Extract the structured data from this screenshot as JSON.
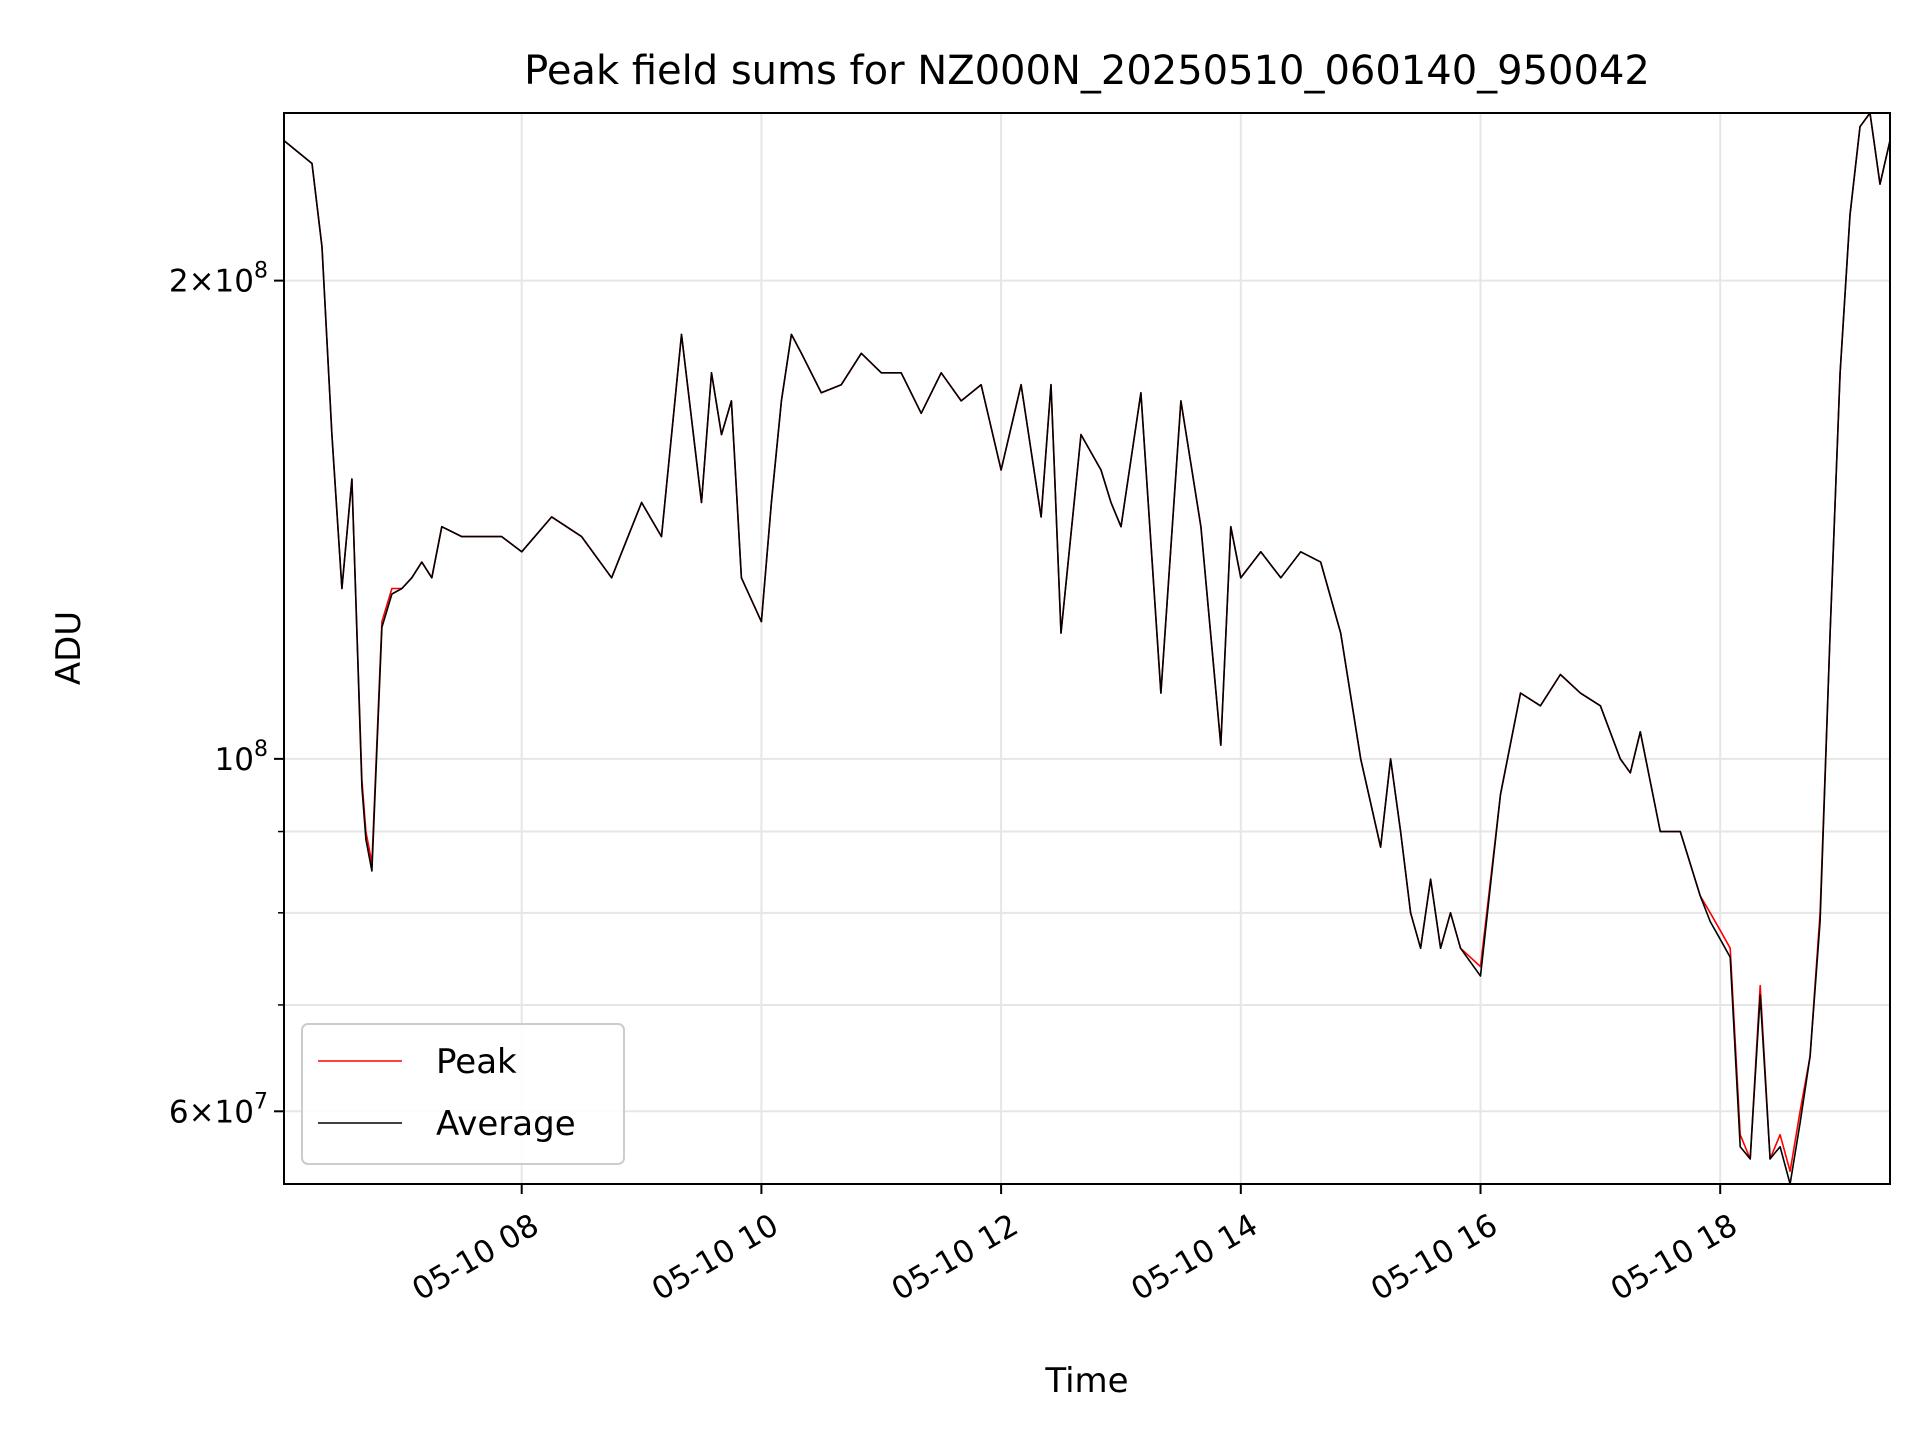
{
  "chart_data": {
    "type": "line",
    "title": "Peak field sums for NZ000N_20250510_060140_950042",
    "xlabel": "Time",
    "ylabel": "ADU",
    "x_range": [
      "2025-05-10 06:01",
      "2025-05-10 19:25"
    ],
    "ylim": [
      54000000,
      255000000
    ],
    "y_scale": "log",
    "grid": true,
    "legend": {
      "position": "lower-left"
    },
    "x_ticks": [
      "05-10 08",
      "05-10 10",
      "05-10 12",
      "05-10 14",
      "05-10 16",
      "05-10 18"
    ],
    "x_tick_values": [
      "2025-05-10 08:00",
      "2025-05-10 10:00",
      "2025-05-10 12:00",
      "2025-05-10 14:00",
      "2025-05-10 16:00",
      "2025-05-10 18:00"
    ],
    "y_ticks": [
      {
        "value": 60000000,
        "mantissa": "6",
        "base": "10",
        "exp": "7"
      },
      {
        "value": 100000000,
        "mantissa": "",
        "base": "10",
        "exp": "8"
      },
      {
        "value": 200000000,
        "mantissa": "2",
        "base": "10",
        "exp": "8"
      }
    ],
    "y_minor_ticks": [
      70000000,
      80000000,
      90000000
    ],
    "x": [
      "06:01",
      "06:15",
      "06:20",
      "06:25",
      "06:30",
      "06:35",
      "06:40",
      "06:42",
      "06:45",
      "06:50",
      "06:55",
      "07:00",
      "07:05",
      "07:10",
      "07:15",
      "07:20",
      "07:30",
      "07:40",
      "07:50",
      "08:00",
      "08:15",
      "08:30",
      "08:45",
      "09:00",
      "09:10",
      "09:20",
      "09:30",
      "09:35",
      "09:40",
      "09:45",
      "09:50",
      "10:00",
      "10:05",
      "10:10",
      "10:15",
      "10:20",
      "10:30",
      "10:40",
      "10:50",
      "11:00",
      "11:10",
      "11:20",
      "11:30",
      "11:40",
      "11:50",
      "12:00",
      "12:10",
      "12:20",
      "12:25",
      "12:30",
      "12:40",
      "12:50",
      "12:55",
      "13:00",
      "13:10",
      "13:20",
      "13:30",
      "13:40",
      "13:50",
      "13:55",
      "14:00",
      "14:10",
      "14:20",
      "14:30",
      "14:40",
      "14:50",
      "15:00",
      "15:10",
      "15:15",
      "15:20",
      "15:25",
      "15:30",
      "15:35",
      "15:40",
      "15:45",
      "15:50",
      "16:00",
      "16:10",
      "16:20",
      "16:30",
      "16:40",
      "16:50",
      "17:00",
      "17:10",
      "17:15",
      "17:20",
      "17:30",
      "17:40",
      "17:50",
      "17:55",
      "18:00",
      "18:05",
      "18:10",
      "18:15",
      "18:20",
      "18:25",
      "18:30",
      "18:35",
      "18:40",
      "18:45",
      "18:50",
      "18:55",
      "19:00",
      "19:05",
      "19:10",
      "19:15",
      "19:20",
      "19:25"
    ],
    "series": [
      {
        "name": "Peak",
        "color": "#ff0000",
        "values": [
          245,
          237,
          210,
          160,
          128,
          150,
          97,
          90,
          86,
          122,
          128,
          128,
          130,
          133,
          130,
          140,
          138,
          138,
          138,
          135,
          142,
          138,
          130,
          145,
          138,
          185,
          145,
          175,
          160,
          168,
          130,
          122,
          145,
          168,
          185,
          180,
          170,
          172,
          180,
          175,
          175,
          165,
          175,
          168,
          172,
          152,
          172,
          142,
          172,
          120,
          160,
          152,
          145,
          140,
          170,
          110,
          168,
          140,
          102,
          140,
          130,
          135,
          130,
          135,
          133,
          120,
          100,
          88,
          100,
          90,
          80,
          76,
          84,
          76,
          80,
          76,
          74,
          95,
          110,
          108,
          113,
          110,
          108,
          100,
          98,
          104,
          90,
          90,
          82,
          80,
          78,
          76,
          58,
          56,
          72,
          56,
          58,
          55,
          60,
          65,
          80,
          120,
          175,
          220,
          250,
          255,
          230,
          245
        ]
      },
      {
        "name": "Average",
        "color": "#000000",
        "values": [
          245,
          237,
          210,
          160,
          128,
          150,
          96,
          89,
          85,
          121,
          127,
          128,
          130,
          133,
          130,
          140,
          138,
          138,
          138,
          135,
          142,
          138,
          130,
          145,
          138,
          185,
          145,
          175,
          160,
          168,
          130,
          122,
          145,
          168,
          185,
          180,
          170,
          172,
          180,
          175,
          175,
          165,
          175,
          168,
          172,
          152,
          172,
          142,
          172,
          120,
          160,
          152,
          145,
          140,
          170,
          110,
          168,
          140,
          102,
          140,
          130,
          135,
          130,
          135,
          133,
          120,
          100,
          88,
          100,
          90,
          80,
          76,
          84,
          76,
          80,
          76,
          73,
          95,
          110,
          108,
          113,
          110,
          108,
          100,
          98,
          104,
          90,
          90,
          82,
          79,
          77,
          75,
          57,
          56,
          71,
          56,
          57,
          54,
          59,
          65,
          79,
          120,
          175,
          220,
          250,
          255,
          230,
          245
        ]
      }
    ]
  }
}
